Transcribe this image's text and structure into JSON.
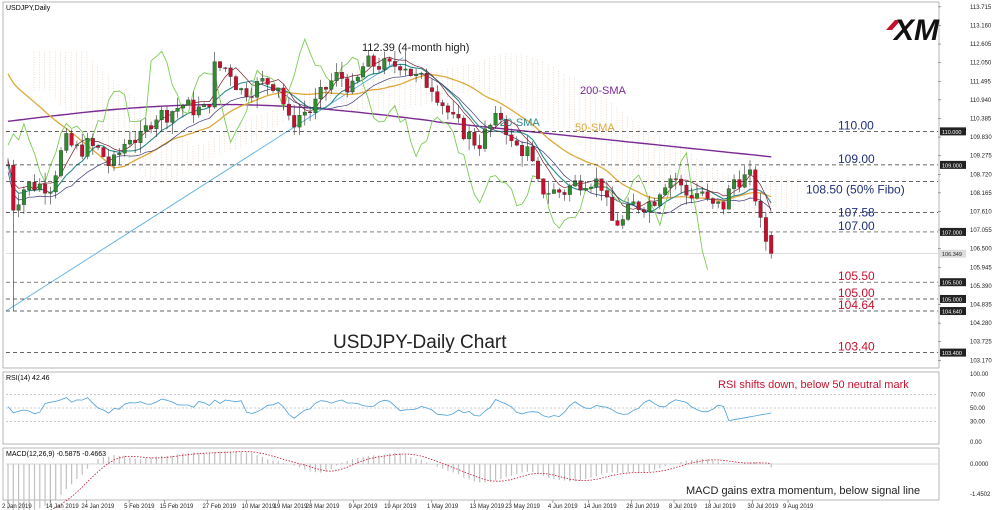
{
  "header": {
    "symbol": "USDJPY,Daily"
  },
  "logo": {
    "text": "XM"
  },
  "colors": {
    "bull": "#2e8b2e",
    "bear": "#c8102e",
    "sma200": "#7b2a93",
    "sma50": "#e0a83a",
    "sma20": "#2a8b8b",
    "lagging": "#7ccc55",
    "tenkan": "#7a1e2a",
    "kijun": "#3a3a7a",
    "cloud": "#d8a888",
    "trend": "#5fb0e0",
    "hline": "#333333",
    "rsi": "#4c9ed6",
    "macd_hist": "#c0c0c0",
    "signal": "#c8102e",
    "red_text": "#c8102e",
    "blue_text": "#1f2f7a"
  },
  "annotations": {
    "chart_title": "USDJPY-Daily Chart",
    "high_label": "112.39 (4-month high)",
    "sma200_label": "200-SMA",
    "sma50_label": "50-SMA",
    "sma20_label": "20-SMA",
    "rsi_note": "RSI shifts down, below 50 neutral mark",
    "macd_note": "MACD gains extra momentum, below signal line"
  },
  "levels": [
    {
      "value": 110.0,
      "label": "110.00",
      "color": "#1f2f7a",
      "badge": "110.000"
    },
    {
      "value": 109.0,
      "label": "109.00",
      "color": "#1f2f7a",
      "badge": "109.000"
    },
    {
      "value": 108.5,
      "label": "108.50 (50% Fibo)",
      "color": "#1f2f7a",
      "badge": ""
    },
    {
      "value": 107.58,
      "label": "107.58",
      "color": "#1f2f7a",
      "badge": ""
    },
    {
      "value": 107.0,
      "label": "107.00",
      "color": "#1f2f7a",
      "badge": "107.000"
    },
    {
      "value": 105.5,
      "label": "105.50",
      "color": "#c8102e",
      "badge": "105.500"
    },
    {
      "value": 105.0,
      "label": "105.00",
      "color": "#c8102e",
      "badge": "105.000"
    },
    {
      "value": 104.64,
      "label": "104.64",
      "color": "#c8102e",
      "badge": "104.640"
    },
    {
      "value": 103.4,
      "label": "103.40",
      "color": "#c8102e",
      "badge": "103.400"
    }
  ],
  "price_axis_ticks": [
    "113.715",
    "113.160",
    "112.605",
    "112.050",
    "111.495",
    "110.940",
    "110.385",
    "109.830",
    "109.275",
    "108.720",
    "108.165",
    "107.610",
    "107.055",
    "106.500",
    "105.945",
    "105.390",
    "104.835",
    "104.280",
    "103.725",
    "103.170"
  ],
  "current_price_badge": "106.349",
  "rsi_panel": {
    "label": "RSI(14) 42.46",
    "ticks": [
      "100.00",
      "70.00",
      "50.00",
      "30.00",
      "0.00"
    ]
  },
  "macd_panel": {
    "label": "MACD(12,26,9) -0.5875 -0.4663",
    "ticks": [
      "0.0000",
      "-1.4502"
    ]
  },
  "date_labels": [
    "2 Jan 2019",
    "14 Jan 2019",
    "24 Jan 2019",
    "5 Feb 2019",
    "15 Feb 2019",
    "27 Feb 2019",
    "10 Mar 2019",
    "19 Mar 2019",
    "28 Mar 2019",
    "9 Apr 2019",
    "19 Apr 2019",
    "1 May 2019",
    "13 May 2019",
    "23 May 2019",
    "4 Jun 2019",
    "14 Jun 2019",
    "26 Jun 2019",
    "8 Jul 2019",
    "18 Jul 2019",
    "30 Jul 2019",
    "9 Aug 2019"
  ],
  "chart_data": {
    "type": "candlestick",
    "title": "USDJPY-Daily Chart",
    "ylim": [
      103.0,
      113.8
    ],
    "key_points": [
      {
        "date": "3 Jan 2019",
        "low": 104.64
      },
      {
        "date": "23 Apr 2019",
        "high": 112.39
      },
      {
        "date": "7 Aug 2019",
        "low": 105.5
      }
    ],
    "close_path": [
      [
        "2 Jan 2019",
        109.0
      ],
      [
        "3 Jan 2019",
        107.7
      ],
      [
        "7 Jan 2019",
        108.4
      ],
      [
        "10 Jan 2019",
        108.4
      ],
      [
        "14 Jan 2019",
        108.4
      ],
      [
        "18 Jan 2019",
        109.7
      ],
      [
        "22 Jan 2019",
        109.4
      ],
      [
        "24 Jan 2019",
        109.6
      ],
      [
        "28 Jan 2019",
        109.4
      ],
      [
        "31 Jan 2019",
        108.9
      ],
      [
        "5 Feb 2019",
        109.9
      ],
      [
        "8 Feb 2019",
        109.7
      ],
      [
        "12 Feb 2019",
        110.5
      ],
      [
        "15 Feb 2019",
        110.5
      ],
      [
        "20 Feb 2019",
        110.8
      ],
      [
        "22 Feb 2019",
        110.7
      ],
      [
        "27 Feb 2019",
        110.6
      ],
      [
        "1 Mar 2019",
        111.9
      ],
      [
        "5 Mar 2019",
        111.9
      ],
      [
        "8 Mar 2019",
        111.2
      ],
      [
        "12 Mar 2019",
        111.3
      ],
      [
        "15 Mar 2019",
        111.5
      ],
      [
        "19 Mar 2019",
        111.4
      ],
      [
        "22 Mar 2019",
        110.2
      ],
      [
        "26 Mar 2019",
        110.6
      ],
      [
        "28 Mar 2019",
        110.6
      ],
      [
        "2 Apr 2019",
        111.4
      ],
      [
        "5 Apr 2019",
        111.7
      ],
      [
        "9 Apr 2019",
        111.2
      ],
      [
        "12 Apr 2019",
        112.0
      ],
      [
        "16 Apr 2019",
        112.0
      ],
      [
        "19 Apr 2019",
        111.9
      ],
      [
        "23 Apr 2019",
        112.1
      ],
      [
        "26 Apr 2019",
        111.6
      ],
      [
        "1 May 2019",
        111.4
      ],
      [
        "7 May 2019",
        110.3
      ],
      [
        "10 May 2019",
        110.0
      ],
      [
        "14 May 2019",
        109.6
      ],
      [
        "17 May 2019",
        110.1
      ],
      [
        "21 May 2019",
        110.5
      ],
      [
        "23 May 2019",
        109.6
      ],
      [
        "28 May 2019",
        109.4
      ],
      [
        "31 May 2019",
        108.3
      ],
      [
        "4 Jun 2019",
        108.2
      ],
      [
        "7 Jun 2019",
        108.2
      ],
      [
        "11 Jun 2019",
        108.5
      ],
      [
        "14 Jun 2019",
        108.6
      ],
      [
        "18 Jun 2019",
        108.4
      ],
      [
        "20 Jun 2019",
        107.3
      ],
      [
        "24 Jun 2019",
        107.3
      ],
      [
        "26 Jun 2019",
        107.8
      ],
      [
        "28 Jun 2019",
        107.8
      ],
      [
        "2 Jul 2019",
        107.9
      ],
      [
        "5 Jul 2019",
        108.5
      ],
      [
        "8 Jul 2019",
        108.7
      ],
      [
        "11 Jul 2019",
        108.1
      ],
      [
        "16 Jul 2019",
        108.2
      ],
      [
        "18 Jul 2019",
        107.7
      ],
      [
        "22 Jul 2019",
        107.8
      ],
      [
        "25 Jul 2019",
        108.6
      ],
      [
        "30 Jul 2019",
        108.6
      ],
      [
        "1 Aug 2019",
        107.3
      ],
      [
        "5 Aug 2019",
        106.1
      ],
      [
        "7 Aug 2019",
        106.3
      ],
      [
        "9 Aug 2019",
        105.8
      ],
      [
        "12 Aug 2019",
        105.4
      ],
      [
        "13 Aug 2019",
        106.7
      ],
      [
        "14 Aug 2019",
        106.3
      ]
    ]
  }
}
